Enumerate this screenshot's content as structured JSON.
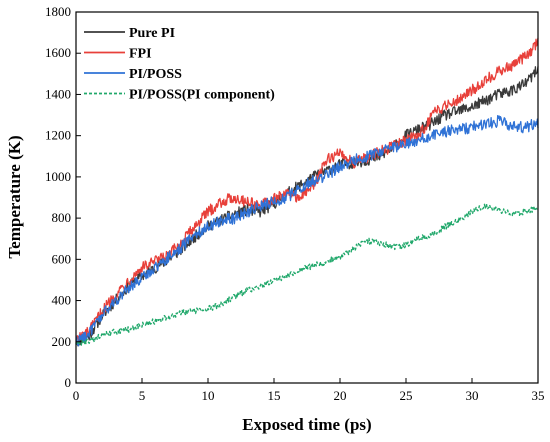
{
  "chart_data": {
    "type": "line",
    "title": "",
    "xlabel": "Exposed time (ps)",
    "ylabel": "Temperature (K)",
    "xlim": [
      0,
      35
    ],
    "ylim": [
      0,
      1800
    ],
    "xticks": [
      0,
      5,
      10,
      15,
      20,
      25,
      30,
      35
    ],
    "yticks": [
      0,
      200,
      400,
      600,
      800,
      1000,
      1200,
      1400,
      1600,
      1800
    ],
    "grid": false,
    "legend": "top-left",
    "series": [
      {
        "name": "Pure PI",
        "color": "#3a3a3a",
        "style": "solid",
        "x": [
          0,
          1,
          2,
          3,
          4,
          5,
          6,
          7,
          8,
          9,
          10,
          11,
          12,
          13,
          14,
          15,
          16,
          17,
          18,
          19,
          20,
          21,
          22,
          23,
          24,
          25,
          26,
          27,
          28,
          29,
          30,
          31,
          32,
          33,
          34,
          35
        ],
        "y": [
          200,
          230,
          330,
          400,
          470,
          520,
          560,
          600,
          650,
          710,
          760,
          790,
          820,
          840,
          830,
          870,
          920,
          960,
          1000,
          1030,
          1060,
          1070,
          1080,
          1100,
          1140,
          1200,
          1230,
          1260,
          1300,
          1320,
          1340,
          1370,
          1400,
          1420,
          1450,
          1520
        ]
      },
      {
        "name": "FPI",
        "color": "#e8403a",
        "style": "solid",
        "x": [
          0,
          1,
          2,
          3,
          4,
          5,
          6,
          7,
          8,
          9,
          10,
          11,
          12,
          13,
          14,
          15,
          16,
          17,
          18,
          19,
          20,
          21,
          22,
          23,
          24,
          25,
          26,
          27,
          28,
          29,
          30,
          31,
          32,
          33,
          34,
          35
        ],
        "y": [
          210,
          250,
          350,
          430,
          500,
          560,
          590,
          620,
          680,
          760,
          830,
          880,
          900,
          880,
          860,
          890,
          920,
          900,
          960,
          1080,
          1120,
          1070,
          1090,
          1120,
          1150,
          1180,
          1200,
          1300,
          1350,
          1380,
          1420,
          1470,
          1510,
          1540,
          1580,
          1650
        ]
      },
      {
        "name": "PI/POSS",
        "color": "#2f72d6",
        "style": "solid",
        "x": [
          0,
          1,
          2,
          3,
          4,
          5,
          6,
          7,
          8,
          9,
          10,
          11,
          12,
          13,
          14,
          15,
          16,
          17,
          18,
          19,
          20,
          21,
          22,
          23,
          24,
          25,
          26,
          27,
          28,
          29,
          30,
          31,
          32,
          33,
          34,
          35
        ],
        "y": [
          200,
          240,
          330,
          400,
          460,
          510,
          560,
          610,
          660,
          720,
          760,
          790,
          800,
          830,
          860,
          880,
          900,
          950,
          980,
          1010,
          1050,
          1080,
          1100,
          1120,
          1140,
          1160,
          1180,
          1200,
          1220,
          1230,
          1240,
          1260,
          1270,
          1250,
          1240,
          1260
        ]
      },
      {
        "name": "PI/POSS(PI component)",
        "color": "#21a86b",
        "style": "dashed",
        "x": [
          0,
          1,
          2,
          3,
          4,
          5,
          6,
          7,
          8,
          9,
          10,
          11,
          12,
          13,
          14,
          15,
          16,
          17,
          18,
          19,
          20,
          21,
          22,
          23,
          24,
          25,
          26,
          27,
          28,
          29,
          30,
          31,
          32,
          33,
          34,
          35
        ],
        "y": [
          190,
          200,
          230,
          250,
          260,
          280,
          300,
          320,
          340,
          350,
          360,
          380,
          420,
          450,
          470,
          500,
          520,
          550,
          570,
          590,
          610,
          650,
          690,
          680,
          660,
          670,
          700,
          720,
          760,
          790,
          830,
          860,
          840,
          820,
          830,
          850
        ]
      }
    ]
  }
}
